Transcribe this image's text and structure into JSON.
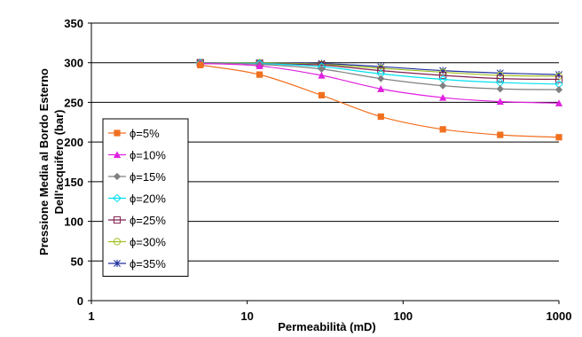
{
  "chart_data": {
    "type": "line",
    "xscale": "log",
    "xlim": [
      1,
      1000
    ],
    "ylim": [
      0,
      350
    ],
    "grid": "horizontal",
    "legend_position": "left",
    "xlabel": "Permeabilità (mD)",
    "ylabel": [
      "Pressione Media al Bordo Esterno",
      "Dell'acquifero (bar)"
    ],
    "x_ticks": [
      {
        "value": 1,
        "label": "1"
      },
      {
        "value": 10,
        "label": "10"
      },
      {
        "value": 100,
        "label": "100"
      },
      {
        "value": 1000,
        "label": "1000"
      }
    ],
    "y_ticks": [
      {
        "value": 0,
        "label": "0"
      },
      {
        "value": 50,
        "label": "50"
      },
      {
        "value": 100,
        "label": "100"
      },
      {
        "value": 150,
        "label": "150"
      },
      {
        "value": 200,
        "label": "200"
      },
      {
        "value": 250,
        "label": "250"
      },
      {
        "value": 300,
        "label": "300"
      },
      {
        "value": 350,
        "label": "350"
      }
    ],
    "x": [
      5,
      12,
      30,
      72,
      180,
      420,
      1000
    ],
    "series": [
      {
        "name": "ϕ=5%",
        "color": "#f07020",
        "marker": "square-filled",
        "values": [
          297,
          285,
          259,
          232,
          216,
          209,
          206
        ]
      },
      {
        "name": "ϕ=10%",
        "color": "#e020e0",
        "marker": "triangle-filled",
        "values": [
          299,
          296,
          284,
          267,
          256,
          251,
          249
        ]
      },
      {
        "name": "ϕ=15%",
        "color": "#808080",
        "marker": "diamond-filled",
        "values": [
          300,
          298,
          292,
          280,
          271,
          267,
          266
        ]
      },
      {
        "name": "ϕ=20%",
        "color": "#00e0f0",
        "marker": "diamond-open",
        "values": [
          300,
          299,
          295,
          286,
          279,
          275,
          273
        ]
      },
      {
        "name": "ϕ=25%",
        "color": "#802050",
        "marker": "square-open",
        "values": [
          300,
          299,
          297,
          290,
          284,
          280,
          279
        ]
      },
      {
        "name": "ϕ=30%",
        "color": "#a0c020",
        "marker": "circle-open",
        "values": [
          300,
          300,
          298,
          293,
          288,
          284,
          283
        ]
      },
      {
        "name": "ϕ=35%",
        "color": "#2030a0",
        "marker": "star",
        "values": [
          300,
          300,
          299,
          295,
          290,
          287,
          285
        ]
      }
    ]
  }
}
